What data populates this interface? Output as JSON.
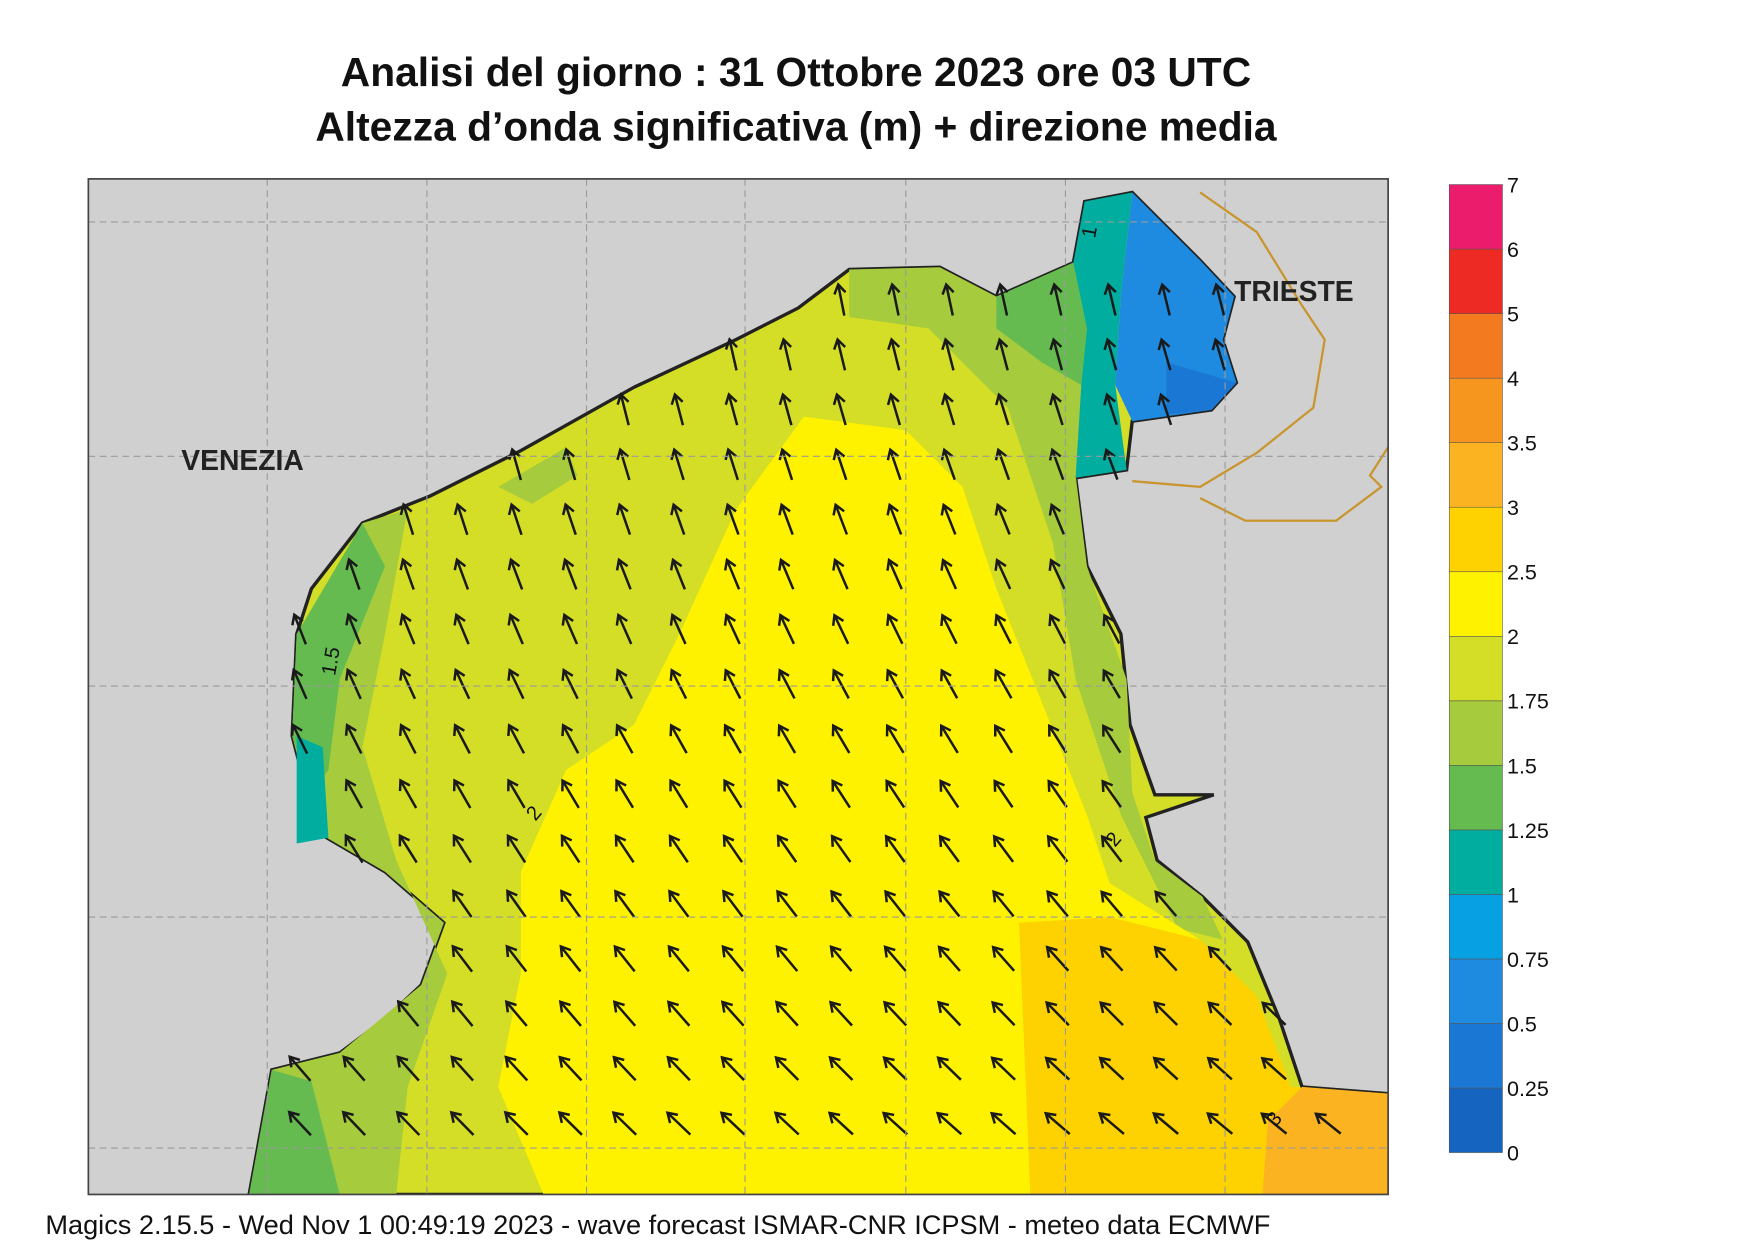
{
  "title_lines": [
    "Analisi del giorno :  31  Ottobre  2023   ore 03 UTC",
    "Altezza d’onda significativa (m) + direzione media"
  ],
  "places": [
    "VENEZIA",
    "TRIESTE"
  ],
  "contour_labels": [
    "1.5",
    "2",
    "2",
    "3",
    "1"
  ],
  "colorbar": {
    "levels": [
      "0",
      "0.25",
      "0.5",
      "0.75",
      "1",
      "1.25",
      "1.5",
      "1.75",
      "2",
      "2.5",
      "3",
      "3.5",
      "4",
      "5",
      "6",
      "7"
    ],
    "colors": [
      "#1565c0",
      "#1a78d4",
      "#1e8be0",
      "#07a0e3",
      "#00ad9f",
      "#66bb50",
      "#a6cb3c",
      "#d4de26",
      "#fff200",
      "#fdd200",
      "#fbb321",
      "#f7961e",
      "#f47a20",
      "#ee2a24",
      "#ec1c6c"
    ]
  },
  "footer": "Magics 2.15.5 - Wed Nov  1 00:49:19 2023 - wave forecast  ISMAR-CNR  ICPSM - meteo data    ECMWF"
}
